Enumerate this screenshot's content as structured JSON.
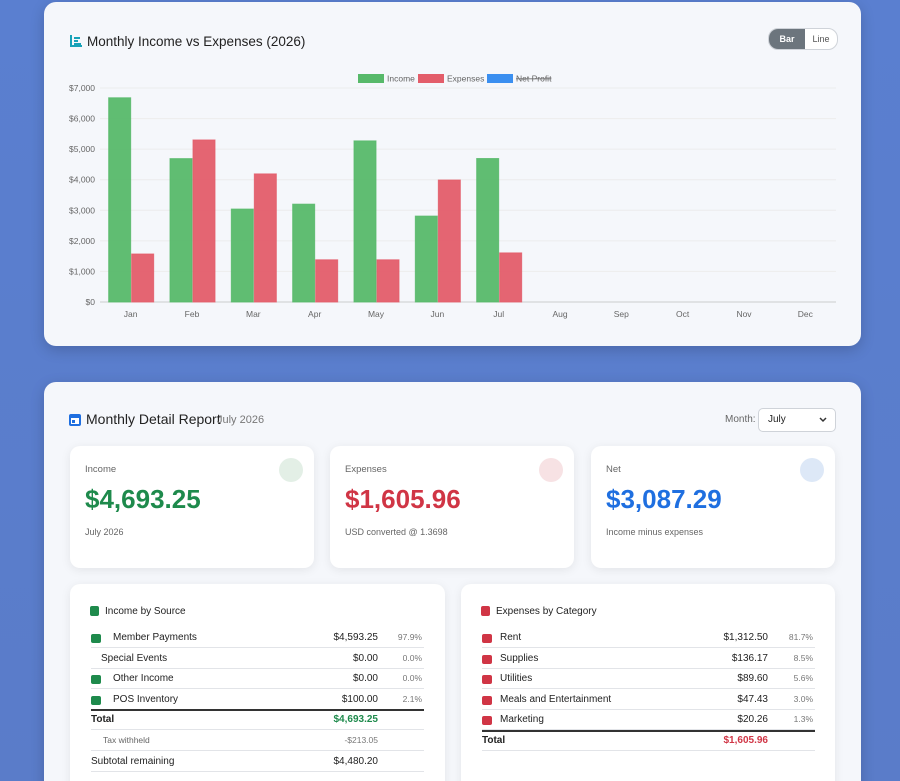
{
  "chart_data": {
    "type": "bar",
    "title": "Monthly Income vs Expenses (2026)",
    "categories": [
      "Jan",
      "Feb",
      "Mar",
      "Apr",
      "May",
      "Jun",
      "Jul",
      "Aug",
      "Sep",
      "Oct",
      "Nov",
      "Dec"
    ],
    "series": [
      {
        "name": "Income",
        "color": "#57b96a",
        "values": [
          6680,
          4690,
          3040,
          3200,
          5270,
          2810,
          4693.25,
          null,
          null,
          null,
          null,
          null
        ]
      },
      {
        "name": "Expenses",
        "color": "#e35d6a",
        "values": [
          1570,
          5300,
          4190,
          1380,
          1380,
          3990,
          1605.96,
          null,
          null,
          null,
          null,
          null
        ]
      },
      {
        "name": "Net Profit",
        "color": "#3b8ff0",
        "hidden": true,
        "values": [
          null,
          null,
          null,
          null,
          null,
          null,
          null,
          null,
          null,
          null,
          null,
          null
        ]
      }
    ],
    "ylim": [
      0,
      7000
    ],
    "yticks": [
      {
        "value": 0,
        "label": "$0"
      },
      {
        "value": 1000,
        "label": "$1,000"
      },
      {
        "value": 2000,
        "label": "$2,000"
      },
      {
        "value": 3000,
        "label": "$3,000"
      },
      {
        "value": 4000,
        "label": "$4,000"
      },
      {
        "value": 5000,
        "label": "$5,000"
      },
      {
        "value": 6000,
        "label": "$6,000"
      },
      {
        "value": 7000,
        "label": "$7,000"
      }
    ],
    "grid": true,
    "legend": "top"
  },
  "chart_toggle": [
    "Bar",
    "Line"
  ],
  "report": {
    "title": "Monthly Detail Report",
    "period": "July 2026",
    "month_label": "Month:",
    "month": "July",
    "summary": [
      {
        "label": "Income",
        "value": "$4,693.25",
        "note": "July 2026"
      },
      {
        "label": "Expenses",
        "value": "$1,605.96",
        "note": "USD converted @ 1.3698"
      },
      {
        "label": "Net",
        "value": "$3,087.29",
        "note": "Income minus expenses"
      }
    ],
    "income": {
      "title": "Income by Source",
      "rows": [
        {
          "name": "Member Payments",
          "amount": "$4,593.25",
          "pct": "97.9%"
        },
        {
          "name": "Special Events",
          "amount": "$0.00",
          "pct": "0.0%"
        },
        {
          "name": "Other Income",
          "amount": "$0.00",
          "pct": "0.0%"
        },
        {
          "name": "POS Inventory",
          "amount": "$100.00",
          "pct": "2.1%"
        }
      ],
      "total": {
        "label": "Total",
        "amount": "$4,693.25"
      },
      "tax": {
        "label": "Tax withheld",
        "amount": "-$213.05"
      },
      "subtotal": {
        "label": "Subtotal remaining",
        "amount": "$4,480.20"
      }
    },
    "expenses": {
      "title": "Expenses by Category",
      "rows": [
        {
          "name": "Rent",
          "amount": "$1,312.50",
          "pct": "81.7%"
        },
        {
          "name": "Supplies",
          "amount": "$136.17",
          "pct": "8.5%"
        },
        {
          "name": "Utilities",
          "amount": "$89.60",
          "pct": "5.6%"
        },
        {
          "name": "Meals and Entertainment",
          "amount": "$47.43",
          "pct": "3.0%"
        },
        {
          "name": "Marketing",
          "amount": "$20.26",
          "pct": "1.3%"
        }
      ],
      "total": {
        "label": "Total",
        "amount": "$1,605.96"
      }
    }
  }
}
